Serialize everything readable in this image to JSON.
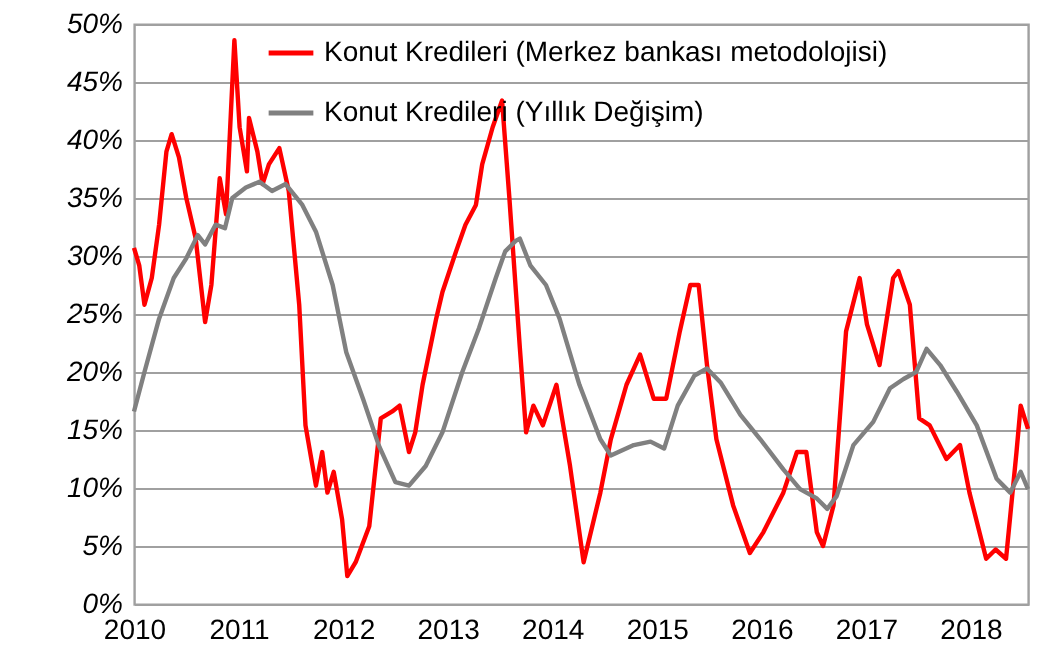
{
  "chart_data": {
    "type": "line",
    "series": [
      {
        "name": "Konut  Kredileri (Merkez bankası metodolojisi)",
        "color": "#ff0000",
        "x": [
          2010.0,
          2010.05,
          2010.1,
          2010.17,
          2010.24,
          2010.31,
          2010.36,
          2010.43,
          2010.5,
          2010.59,
          2010.68,
          2010.74,
          2010.82,
          2010.88,
          2010.96,
          2011.01,
          2011.08,
          2011.1,
          2011.18,
          2011.23,
          2011.29,
          2011.39,
          2011.48,
          2011.58,
          2011.64,
          2011.74,
          2011.8,
          2011.85,
          2011.91,
          2011.99,
          2012.04,
          2012.12,
          2012.25,
          2012.36,
          2012.47,
          2012.54,
          2012.63,
          2012.69,
          2012.76,
          2012.89,
          2012.95,
          2013.08,
          2013.17,
          2013.27,
          2013.33,
          2013.43,
          2013.52,
          2013.59,
          2013.69,
          2013.75,
          2013.82,
          2013.91,
          2014.04,
          2014.17,
          2014.3,
          2014.46,
          2014.56,
          2014.71,
          2014.84,
          2014.97,
          2015.09,
          2015.22,
          2015.32,
          2015.4,
          2015.48,
          2015.57,
          2015.73,
          2015.89,
          2016.02,
          2016.21,
          2016.34,
          2016.43,
          2016.53,
          2016.59,
          2016.69,
          2016.81,
          2016.94,
          2017.01,
          2017.13,
          2017.26,
          2017.31,
          2017.42,
          2017.51,
          2017.61,
          2017.77,
          2017.9,
          2017.99,
          2018.15,
          2018.24,
          2018.34,
          2018.44,
          2018.48,
          2018.55
        ],
        "values": [
          30.7,
          29.2,
          25.8,
          28.1,
          32.7,
          39.0,
          40.5,
          38.5,
          35.0,
          31.5,
          24.3,
          27.5,
          36.7,
          33.6,
          48.6,
          41.1,
          37.3,
          41.9,
          39.0,
          36.2,
          37.9,
          39.3,
          35.6,
          25.8,
          15.4,
          10.2,
          13.1,
          9.6,
          11.4,
          7.3,
          2.4,
          3.6,
          6.7,
          16.0,
          16.6,
          17.1,
          13.1,
          14.8,
          18.9,
          24.6,
          26.9,
          30.4,
          32.7,
          34.4,
          37.9,
          41.1,
          43.4,
          35.0,
          22.1,
          14.8,
          17.1,
          15.4,
          18.9,
          11.9,
          3.6,
          9.6,
          14.2,
          18.9,
          21.5,
          17.7,
          17.7,
          23.5,
          27.5,
          27.5,
          20.6,
          14.2,
          8.5,
          4.4,
          6.2,
          9.6,
          13.1,
          13.1,
          6.2,
          5.0,
          8.5,
          23.5,
          28.1,
          24.1,
          20.6,
          28.1,
          28.7,
          25.8,
          16.0,
          15.4,
          12.5,
          13.7,
          9.6,
          3.9,
          4.7,
          3.9,
          13.1,
          17.1,
          15.1
        ]
      },
      {
        "name": "Konut Kredileri (Yıllık Değişim)",
        "color": "#808080",
        "x": [
          2010.0,
          2010.1,
          2010.24,
          2010.38,
          2010.5,
          2010.61,
          2010.68,
          2010.78,
          2010.87,
          2010.94,
          2011.07,
          2011.2,
          2011.32,
          2011.45,
          2011.61,
          2011.74,
          2011.9,
          2012.03,
          2012.19,
          2012.34,
          2012.5,
          2012.63,
          2012.79,
          2012.95,
          2013.14,
          2013.3,
          2013.46,
          2013.55,
          2013.65,
          2013.69,
          2013.79,
          2013.94,
          2014.07,
          2014.26,
          2014.46,
          2014.56,
          2014.78,
          2014.94,
          2015.07,
          2015.2,
          2015.36,
          2015.48,
          2015.61,
          2015.8,
          2015.99,
          2016.21,
          2016.37,
          2016.53,
          2016.63,
          2016.72,
          2016.88,
          2017.07,
          2017.23,
          2017.36,
          2017.48,
          2017.58,
          2017.71,
          2017.87,
          2018.06,
          2018.25,
          2018.38,
          2018.48,
          2018.55
        ],
        "values": [
          16.6,
          20.0,
          24.6,
          28.1,
          29.8,
          31.8,
          31.0,
          32.7,
          32.4,
          35.0,
          35.9,
          36.4,
          35.6,
          36.2,
          34.4,
          32.1,
          27.5,
          21.7,
          17.7,
          13.7,
          10.5,
          10.2,
          11.9,
          14.8,
          20.0,
          23.8,
          28.1,
          30.4,
          31.3,
          31.5,
          29.2,
          27.5,
          24.6,
          18.9,
          14.2,
          12.8,
          13.7,
          14.0,
          13.4,
          17.1,
          19.7,
          20.3,
          19.1,
          16.3,
          14.2,
          11.6,
          9.9,
          9.1,
          8.2,
          9.3,
          13.7,
          15.7,
          18.6,
          19.4,
          20.0,
          22.0,
          20.6,
          18.3,
          15.4,
          10.8,
          9.6,
          11.4,
          9.9
        ]
      }
    ],
    "xlim": [
      2010,
      2018.55
    ],
    "xticks": [
      2010,
      2011,
      2012,
      2013,
      2014,
      2015,
      2016,
      2017,
      2018
    ],
    "ylim": [
      0,
      50
    ],
    "yticks": [
      {
        "value": 0,
        "label": "0%"
      },
      {
        "value": 5,
        "label": "5%"
      },
      {
        "value": 10,
        "label": "10%"
      },
      {
        "value": 15,
        "label": "15%"
      },
      {
        "value": 20,
        "label": "20%"
      },
      {
        "value": 25,
        "label": "25%"
      },
      {
        "value": 30,
        "label": "30%"
      },
      {
        "value": 35,
        "label": "35%"
      },
      {
        "value": 40,
        "label": "40%"
      },
      {
        "value": 45,
        "label": "45%"
      },
      {
        "value": 50,
        "label": "50%"
      }
    ],
    "grid": "y",
    "legend": "top right",
    "line_style": "solid"
  }
}
